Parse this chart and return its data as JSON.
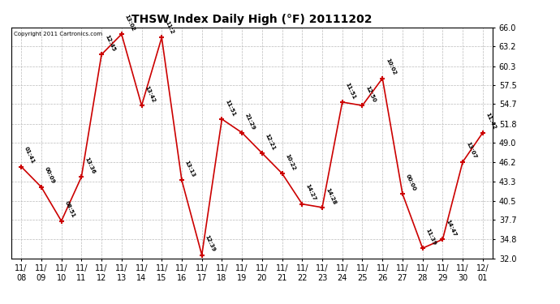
{
  "title": "THSW Index Daily High (°F) 20111202",
  "copyright": "Copyright 2011 Cartronics.com",
  "dates": [
    "11/\n08",
    "11/\n09",
    "11/\n10",
    "11/\n11",
    "11/\n12",
    "11/\n13",
    "11/\n14",
    "11/\n15",
    "11/\n16",
    "11/\n17",
    "11/\n18",
    "11/\n19",
    "11/\n20",
    "11/\n21",
    "11/\n22",
    "11/\n23",
    "11/\n24",
    "11/\n25",
    "11/\n26",
    "11/\n27",
    "11/\n28",
    "11/\n29",
    "11/\n30",
    "12/\n01"
  ],
  "values": [
    45.5,
    42.5,
    37.5,
    44.0,
    62.0,
    65.0,
    54.5,
    64.5,
    43.5,
    32.5,
    52.5,
    50.5,
    47.5,
    44.5,
    40.0,
    39.5,
    55.0,
    54.5,
    58.5,
    41.5,
    33.5,
    34.8,
    46.2,
    50.5
  ],
  "labels": [
    "01:41",
    "00:09",
    "08:51",
    "13:36",
    "12:45",
    "13:02",
    "13:42",
    "11:2",
    "13:13",
    "12:39",
    "11:51",
    "21:29",
    "12:21",
    "10:22",
    "14:27",
    "14:28",
    "11:51",
    "12:50",
    "10:02",
    "00:00",
    "11:39",
    "14:47",
    "13:07",
    "11:42"
  ],
  "line_color": "#cc0000",
  "marker_color": "#cc0000",
  "bg_color": "#ffffff",
  "grid_color": "#bbbbbb",
  "ylim": [
    32.0,
    66.0
  ],
  "yticks": [
    32.0,
    34.8,
    37.7,
    40.5,
    43.3,
    46.2,
    49.0,
    51.8,
    54.7,
    57.5,
    60.3,
    63.2,
    66.0
  ]
}
